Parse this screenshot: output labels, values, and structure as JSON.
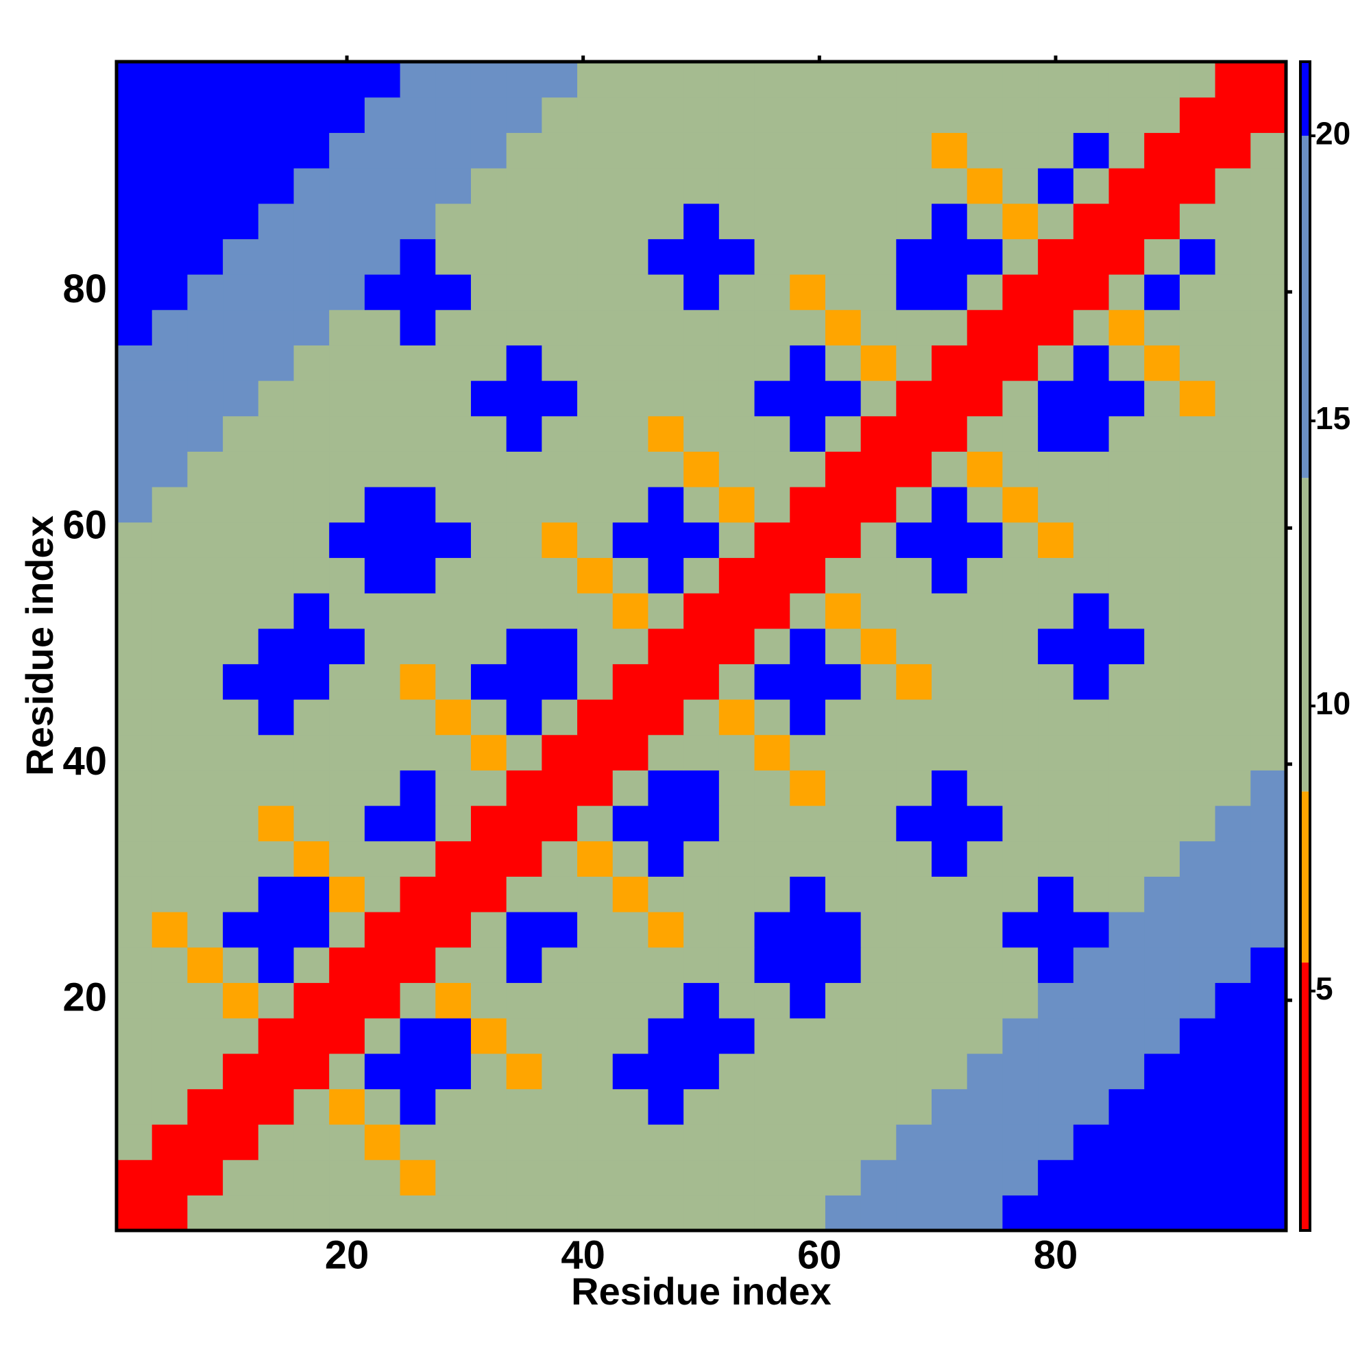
{
  "chart_data": {
    "type": "heatmap",
    "xlabel": "Residue index",
    "ylabel": "Residue index",
    "x": [
      2,
      5,
      8,
      11,
      14,
      17,
      20,
      23,
      26,
      29,
      32,
      35,
      38,
      41,
      44,
      47,
      50,
      53,
      56,
      59,
      62,
      65,
      68,
      71,
      74,
      77,
      80,
      83,
      86,
      89,
      92,
      95,
      98
    ],
    "y": [
      2,
      5,
      8,
      11,
      14,
      17,
      20,
      23,
      26,
      29,
      32,
      35,
      38,
      41,
      44,
      47,
      50,
      53,
      56,
      59,
      62,
      65,
      68,
      71,
      74,
      77,
      80,
      83,
      86,
      89,
      92,
      95,
      98
    ],
    "xlim": [
      0.5,
      99.5
    ],
    "ylim": [
      0.5,
      99.5
    ],
    "xticks": [
      20,
      40,
      60,
      80
    ],
    "yticks": [
      20,
      40,
      60,
      80
    ],
    "colorbar": {
      "lim": [
        0.8,
        21.3
      ],
      "ticks": [
        5,
        10,
        15,
        20
      ]
    },
    "colorscale": [
      {
        "max": 5.5,
        "color": "#ff0000"
      },
      {
        "max": 8.5,
        "color": "#ffa500"
      },
      {
        "max": 14,
        "color": "#a5bb90"
      },
      {
        "max": 20,
        "color": "#6b90c5"
      },
      {
        "max": 21.3,
        "color": "#0000ff"
      }
    ],
    "z": [
      [
        2,
        5,
        9,
        13,
        13,
        13,
        13,
        13,
        13,
        13,
        13,
        13,
        13,
        13,
        13,
        13,
        13,
        13,
        13,
        13,
        17,
        17,
        17,
        17,
        17,
        21,
        21,
        21,
        21,
        21,
        21,
        21,
        21
      ],
      [
        5,
        2,
        5,
        9,
        13,
        13,
        13,
        13,
        7,
        13,
        13,
        13,
        13,
        13,
        13,
        13,
        13,
        13,
        13,
        13,
        13,
        17,
        17,
        17,
        17,
        17,
        21,
        21,
        21,
        21,
        21,
        21,
        21
      ],
      [
        9,
        5,
        2,
        5,
        9,
        13,
        13,
        7,
        13,
        13,
        13,
        13,
        13,
        13,
        13,
        13,
        13,
        13,
        13,
        13,
        13,
        13,
        17,
        17,
        17,
        17,
        17,
        21,
        21,
        21,
        21,
        21,
        21
      ],
      [
        13,
        9,
        5,
        2,
        5,
        9,
        7,
        13,
        21,
        13,
        13,
        13,
        13,
        13,
        13,
        21,
        13,
        13,
        13,
        13,
        13,
        13,
        13,
        17,
        17,
        17,
        17,
        17,
        21,
        21,
        21,
        21,
        21
      ],
      [
        13,
        13,
        9,
        5,
        2,
        5,
        9,
        21,
        21,
        21,
        13,
        7,
        13,
        13,
        21,
        21,
        21,
        13,
        13,
        13,
        13,
        13,
        13,
        13,
        17,
        17,
        17,
        17,
        17,
        21,
        21,
        21,
        21
      ],
      [
        13,
        13,
        13,
        9,
        5,
        2,
        5,
        9,
        21,
        21,
        7,
        13,
        13,
        13,
        13,
        21,
        21,
        21,
        13,
        13,
        13,
        13,
        13,
        13,
        13,
        17,
        17,
        17,
        17,
        17,
        21,
        21,
        21
      ],
      [
        13,
        13,
        13,
        7,
        9,
        5,
        2,
        5,
        9,
        7,
        13,
        13,
        13,
        13,
        13,
        13,
        21,
        13,
        13,
        21,
        13,
        13,
        13,
        13,
        13,
        13,
        17,
        17,
        17,
        17,
        17,
        21,
        21
      ],
      [
        13,
        13,
        7,
        13,
        21,
        9,
        5,
        2,
        5,
        9,
        13,
        21,
        13,
        13,
        13,
        13,
        13,
        13,
        21,
        21,
        21,
        13,
        13,
        13,
        13,
        13,
        21,
        17,
        17,
        17,
        17,
        17,
        21
      ],
      [
        13,
        7,
        13,
        21,
        21,
        21,
        9,
        5,
        2,
        5,
        9,
        21,
        21,
        13,
        13,
        7,
        13,
        13,
        21,
        21,
        21,
        13,
        13,
        13,
        13,
        21,
        21,
        21,
        17,
        17,
        17,
        17,
        17
      ],
      [
        13,
        13,
        13,
        13,
        21,
        21,
        7,
        9,
        5,
        2,
        5,
        9,
        13,
        13,
        7,
        13,
        13,
        13,
        13,
        21,
        13,
        13,
        13,
        13,
        13,
        13,
        21,
        13,
        13,
        17,
        17,
        17,
        17
      ],
      [
        13,
        13,
        13,
        13,
        13,
        7,
        13,
        13,
        9,
        5,
        2,
        5,
        9,
        7,
        13,
        21,
        13,
        13,
        13,
        13,
        13,
        13,
        13,
        21,
        13,
        13,
        13,
        13,
        13,
        13,
        17,
        17,
        17
      ],
      [
        13,
        13,
        13,
        13,
        7,
        13,
        13,
        21,
        21,
        9,
        5,
        2,
        5,
        9,
        21,
        21,
        21,
        13,
        13,
        13,
        13,
        13,
        21,
        21,
        21,
        13,
        13,
        13,
        13,
        13,
        13,
        17,
        17
      ],
      [
        13,
        13,
        13,
        13,
        13,
        13,
        13,
        13,
        21,
        13,
        9,
        5,
        2,
        5,
        9,
        21,
        21,
        13,
        13,
        7,
        13,
        13,
        13,
        21,
        13,
        13,
        13,
        13,
        13,
        13,
        13,
        13,
        17
      ],
      [
        13,
        13,
        13,
        13,
        13,
        13,
        13,
        13,
        13,
        13,
        7,
        9,
        5,
        2,
        5,
        9,
        13,
        13,
        7,
        13,
        13,
        13,
        13,
        13,
        13,
        13,
        13,
        13,
        13,
        13,
        13,
        13,
        13
      ],
      [
        13,
        13,
        13,
        13,
        21,
        13,
        13,
        13,
        13,
        7,
        13,
        21,
        9,
        5,
        2,
        5,
        9,
        7,
        13,
        21,
        13,
        13,
        13,
        13,
        13,
        13,
        13,
        13,
        13,
        13,
        13,
        13,
        13
      ],
      [
        13,
        13,
        13,
        21,
        21,
        21,
        13,
        13,
        7,
        13,
        21,
        21,
        21,
        9,
        5,
        2,
        5,
        9,
        21,
        21,
        21,
        13,
        7,
        13,
        13,
        13,
        13,
        21,
        13,
        13,
        13,
        13,
        13
      ],
      [
        13,
        13,
        13,
        13,
        21,
        21,
        21,
        13,
        13,
        13,
        13,
        21,
        21,
        13,
        9,
        5,
        2,
        5,
        9,
        21,
        13,
        7,
        13,
        13,
        13,
        13,
        21,
        21,
        21,
        13,
        13,
        13,
        13
      ],
      [
        13,
        13,
        13,
        13,
        13,
        21,
        13,
        13,
        13,
        13,
        13,
        13,
        13,
        13,
        7,
        9,
        5,
        2,
        5,
        9,
        7,
        13,
        13,
        13,
        13,
        13,
        13,
        21,
        13,
        13,
        13,
        13,
        13
      ],
      [
        13,
        13,
        13,
        13,
        13,
        13,
        13,
        21,
        21,
        13,
        13,
        13,
        13,
        7,
        13,
        21,
        9,
        5,
        2,
        5,
        9,
        13,
        13,
        21,
        13,
        13,
        13,
        13,
        13,
        13,
        13,
        13,
        13
      ],
      [
        13,
        13,
        13,
        13,
        13,
        13,
        21,
        21,
        21,
        21,
        13,
        13,
        7,
        13,
        21,
        21,
        21,
        9,
        5,
        2,
        5,
        9,
        21,
        21,
        21,
        13,
        7,
        13,
        13,
        13,
        13,
        13,
        13
      ],
      [
        17,
        13,
        13,
        13,
        13,
        13,
        13,
        21,
        21,
        13,
        13,
        13,
        13,
        13,
        13,
        21,
        13,
        7,
        9,
        5,
        2,
        5,
        9,
        21,
        13,
        7,
        13,
        13,
        13,
        13,
        13,
        13,
        13
      ],
      [
        17,
        17,
        13,
        13,
        13,
        13,
        13,
        13,
        13,
        13,
        13,
        13,
        13,
        13,
        13,
        13,
        7,
        13,
        13,
        9,
        5,
        2,
        5,
        9,
        7,
        13,
        13,
        13,
        13,
        13,
        13,
        13,
        13
      ],
      [
        17,
        17,
        17,
        13,
        13,
        13,
        13,
        13,
        13,
        13,
        13,
        21,
        13,
        13,
        13,
        7,
        13,
        13,
        13,
        21,
        9,
        5,
        2,
        5,
        9,
        13,
        21,
        21,
        13,
        13,
        13,
        13,
        13
      ],
      [
        17,
        17,
        17,
        17,
        13,
        13,
        13,
        13,
        13,
        13,
        21,
        21,
        21,
        13,
        13,
        13,
        13,
        13,
        21,
        21,
        21,
        9,
        5,
        2,
        5,
        9,
        21,
        21,
        21,
        13,
        7,
        13,
        13
      ],
      [
        17,
        17,
        17,
        17,
        17,
        13,
        13,
        13,
        13,
        13,
        13,
        21,
        13,
        13,
        13,
        13,
        13,
        13,
        13,
        21,
        13,
        7,
        9,
        5,
        2,
        5,
        9,
        21,
        13,
        7,
        13,
        13,
        13
      ],
      [
        21,
        17,
        17,
        17,
        17,
        17,
        13,
        13,
        21,
        13,
        13,
        13,
        13,
        13,
        13,
        13,
        13,
        13,
        13,
        13,
        7,
        13,
        13,
        9,
        5,
        2,
        5,
        9,
        7,
        13,
        13,
        13,
        13
      ],
      [
        21,
        21,
        17,
        17,
        17,
        17,
        17,
        21,
        21,
        21,
        13,
        13,
        13,
        13,
        13,
        13,
        21,
        13,
        13,
        7,
        13,
        13,
        21,
        21,
        9,
        5,
        2,
        5,
        9,
        21,
        13,
        13,
        13
      ],
      [
        21,
        21,
        21,
        17,
        17,
        17,
        17,
        17,
        21,
        13,
        13,
        13,
        13,
        13,
        13,
        21,
        21,
        21,
        13,
        13,
        13,
        13,
        21,
        21,
        21,
        9,
        5,
        2,
        5,
        9,
        21,
        13,
        13
      ],
      [
        21,
        21,
        21,
        21,
        17,
        17,
        17,
        17,
        17,
        13,
        13,
        13,
        13,
        13,
        13,
        13,
        21,
        13,
        13,
        13,
        13,
        13,
        13,
        21,
        13,
        7,
        9,
        5,
        2,
        5,
        9,
        13,
        13
      ],
      [
        21,
        21,
        21,
        21,
        21,
        17,
        17,
        17,
        17,
        17,
        13,
        13,
        13,
        13,
        13,
        13,
        13,
        13,
        13,
        13,
        13,
        13,
        13,
        13,
        7,
        13,
        21,
        9,
        5,
        2,
        5,
        9,
        13
      ],
      [
        21,
        21,
        21,
        21,
        21,
        21,
        17,
        17,
        17,
        17,
        17,
        13,
        13,
        13,
        13,
        13,
        13,
        13,
        13,
        13,
        13,
        13,
        13,
        7,
        13,
        13,
        13,
        21,
        9,
        5,
        2,
        5,
        9
      ],
      [
        21,
        21,
        21,
        21,
        21,
        21,
        21,
        17,
        17,
        17,
        17,
        17,
        13,
        13,
        13,
        13,
        13,
        13,
        13,
        13,
        13,
        13,
        13,
        13,
        13,
        13,
        13,
        13,
        13,
        9,
        5,
        2,
        5
      ],
      [
        21,
        21,
        21,
        21,
        21,
        21,
        21,
        21,
        17,
        17,
        17,
        17,
        17,
        13,
        13,
        13,
        13,
        13,
        13,
        13,
        13,
        13,
        13,
        13,
        13,
        13,
        13,
        13,
        13,
        13,
        9,
        5,
        2
      ]
    ]
  }
}
